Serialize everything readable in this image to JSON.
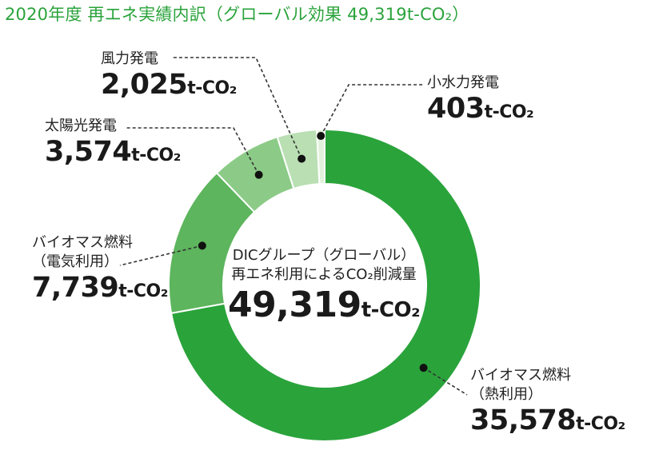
{
  "title": "2020年度 再エネ実績内訳（グローバル効果 49,319t-CO₂）",
  "center": {
    "line1": "DICグループ（グローバル）",
    "line2": "再エネ利用によるCO₂削減量",
    "value": "49,319",
    "unit": "t-CO₂"
  },
  "labels": [
    {
      "name": "風力発電",
      "value": "2,025",
      "unit": "t-CO₂"
    },
    {
      "name": "小水力発電",
      "value": "403",
      "unit": "t-CO₂"
    },
    {
      "name": "太陽光発電",
      "value": "3,574",
      "unit": "t-CO₂"
    },
    {
      "name": "バイオマス燃料",
      "name2": "（電気利用）",
      "value": "7,739",
      "unit": "t-CO₂"
    },
    {
      "name": "バイオマス燃料",
      "name2": "（熱利用）",
      "value": "35,578",
      "unit": "t-CO₂"
    }
  ],
  "chart_data": {
    "type": "pie",
    "donut": true,
    "title": "2020年度 再エネ実績内訳（グローバル効果 49,319t-CO₂）",
    "unit": "t-CO₂",
    "total": 49319,
    "slices": [
      {
        "name": "バイオマス燃料（熱利用）",
        "value": 35578,
        "color": "#2aa33b"
      },
      {
        "name": "バイオマス燃料（電気利用）",
        "value": 7739,
        "color": "#5db55d"
      },
      {
        "name": "太陽光発電",
        "value": 3574,
        "color": "#8bcb87"
      },
      {
        "name": "風力発電",
        "value": 2025,
        "color": "#b9dfb3"
      },
      {
        "name": "小水力発電",
        "value": 403,
        "color": "#e2f1dc"
      }
    ]
  }
}
